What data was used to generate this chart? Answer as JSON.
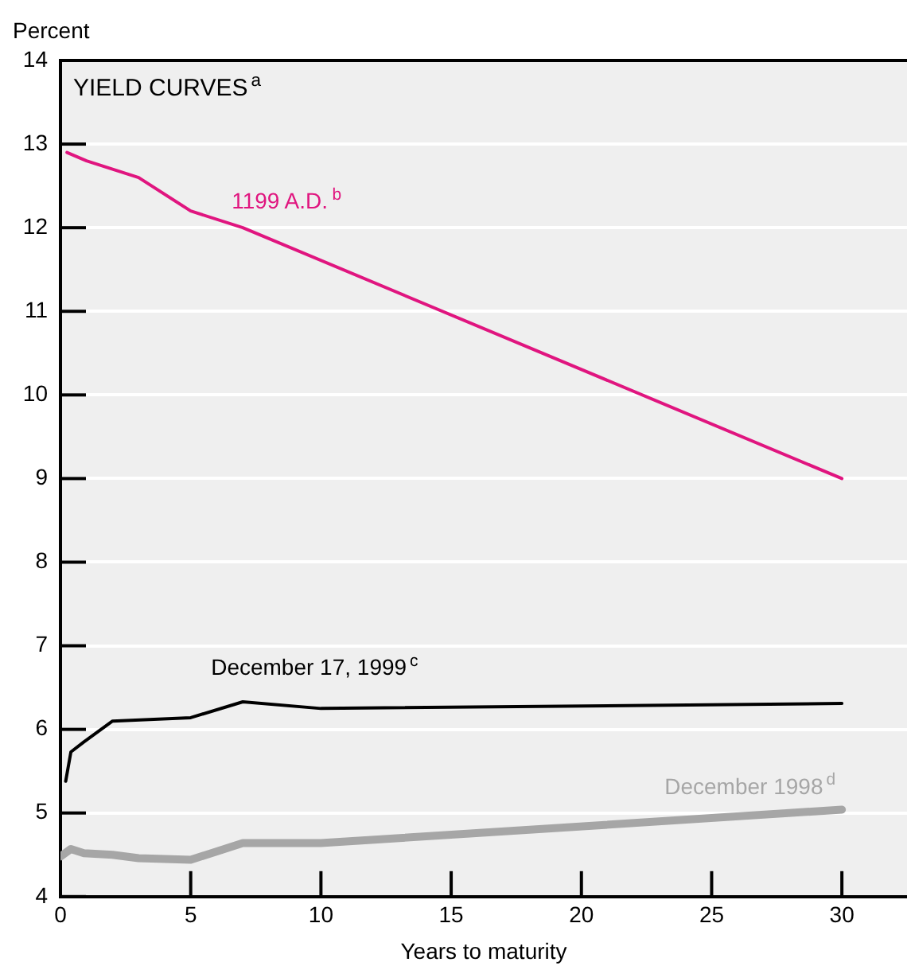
{
  "chart_data": {
    "type": "line",
    "title": "YIELD CURVES$^{a}$",
    "ylabel": "Percent",
    "xlabel": "Years to maturity",
    "xlim": [
      0,
      32.5
    ],
    "xticks": [
      0,
      5,
      10,
      15,
      20,
      25,
      30
    ],
    "ylim": [
      4,
      14
    ],
    "yticks": [
      4,
      5,
      6,
      7,
      8,
      9,
      10,
      11,
      12,
      13,
      14
    ],
    "grid": "y",
    "legend": false,
    "marker": "none",
    "line_style": "solid",
    "series": [
      {
        "name": "1199 A.D.$^{b}$",
        "color": "#e0157f",
        "x": [
          0.25,
          1,
          3,
          5,
          7,
          30
        ],
        "values": [
          12.9,
          12.8,
          12.6,
          12.2,
          12.0,
          9.0
        ]
      },
      {
        "name": "December 17, 1999$^{c}$",
        "color": "#000000",
        "x": [
          0.2,
          0.4,
          0.9,
          2,
          5,
          7,
          10,
          30
        ],
        "values": [
          5.38,
          5.73,
          5.85,
          6.1,
          6.14,
          6.33,
          6.25,
          6.31
        ]
      },
      {
        "name": "December 1998$^{d}$",
        "color": "#a6a6a6",
        "x": [
          0,
          0.4,
          0.9,
          2,
          3,
          5,
          7,
          10,
          30
        ],
        "values": [
          4.48,
          4.57,
          4.52,
          4.5,
          4.46,
          4.44,
          4.64,
          4.64,
          5.04
        ]
      }
    ]
  }
}
